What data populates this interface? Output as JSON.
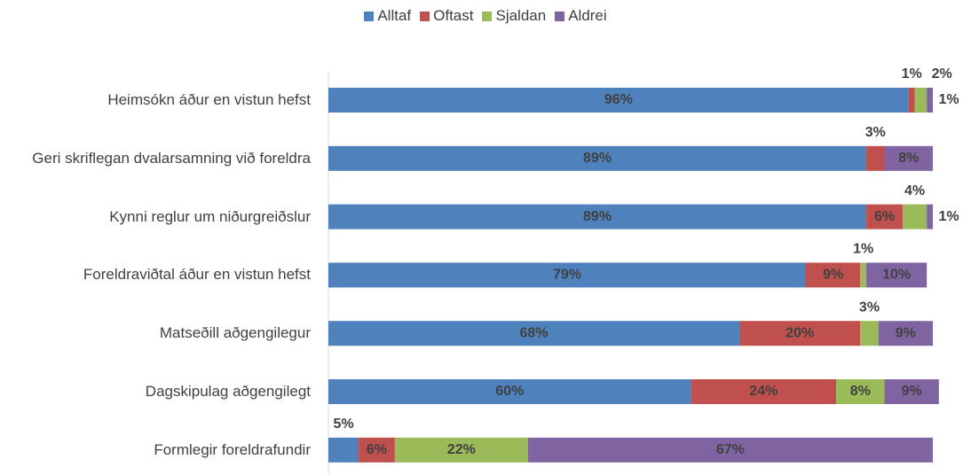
{
  "chart_data": {
    "type": "stacked_barh",
    "categories": [
      "Heimsókn áður en vistun hefst",
      "Geri skriflegan dvalarsamning við foreldra",
      "Kynni reglur um niðurgreiðslur",
      "Foreldraviðtal áður en vistun hefst",
      "Matseðill aðgengilegur",
      "Dagskipulag aðgengilegt",
      "Formlegir foreldrafundir"
    ],
    "series": [
      {
        "name": "Alltaf",
        "color": "#4f81bd",
        "values": [
          96,
          89,
          89,
          79,
          68,
          60,
          5
        ],
        "value_labels": [
          "96%",
          "89%",
          "89%",
          "79%",
          "68%",
          "60%",
          "5%"
        ]
      },
      {
        "name": "Oftast",
        "color": "#c0504d",
        "values": [
          1,
          3,
          6,
          9,
          20,
          24,
          6
        ],
        "value_labels": [
          "1%",
          "3%",
          "6%",
          "9%",
          "20%",
          "24%",
          "6%"
        ]
      },
      {
        "name": "Sjaldan",
        "color": "#9bbb59",
        "values": [
          2,
          0,
          4,
          1,
          3,
          8,
          22
        ],
        "value_labels": [
          "2%",
          null,
          "4%",
          "1%",
          "3%",
          "8%",
          "22%"
        ]
      },
      {
        "name": "Aldrei",
        "color": "#8064a2",
        "values": [
          1,
          8,
          1,
          10,
          9,
          9,
          67
        ],
        "value_labels": [
          "1%",
          "8%",
          "1%",
          "10%",
          "9%",
          "9%",
          "67%"
        ]
      }
    ],
    "legend": "top"
  }
}
